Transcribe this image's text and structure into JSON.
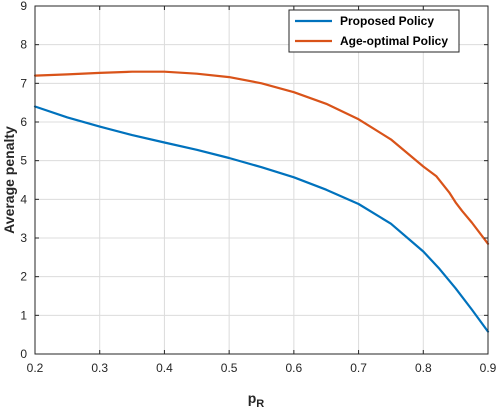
{
  "chart_data": {
    "type": "line",
    "title": "",
    "xlabel": "p",
    "xlabel_subscript": "R",
    "ylabel": "Average penalty",
    "xlim": [
      0.2,
      0.9
    ],
    "ylim": [
      0,
      9
    ],
    "xticks": [
      "0.2",
      "0.3",
      "0.4",
      "0.5",
      "0.6",
      "0.7",
      "0.8",
      "0.9"
    ],
    "yticks": [
      "0",
      "1",
      "2",
      "3",
      "4",
      "5",
      "6",
      "7",
      "8",
      "9"
    ],
    "grid": true,
    "legend_position": "top-right",
    "series": [
      {
        "name": "Proposed Policy",
        "color": "#0072BD",
        "x": [
          0.2,
          0.25,
          0.3,
          0.35,
          0.4,
          0.45,
          0.5,
          0.55,
          0.6,
          0.65,
          0.7,
          0.75,
          0.8,
          0.825,
          0.85,
          0.875,
          0.9
        ],
        "y": [
          6.4,
          6.12,
          5.88,
          5.66,
          5.47,
          5.28,
          5.07,
          4.83,
          4.57,
          4.25,
          3.88,
          3.37,
          2.65,
          2.2,
          1.7,
          1.15,
          0.58
        ]
      },
      {
        "name": "Age-optimal Policy",
        "color": "#D95319",
        "x": [
          0.2,
          0.25,
          0.3,
          0.35,
          0.4,
          0.45,
          0.5,
          0.55,
          0.6,
          0.65,
          0.7,
          0.75,
          0.8,
          0.82,
          0.84,
          0.85,
          0.86,
          0.875,
          0.9
        ],
        "y": [
          7.2,
          7.23,
          7.27,
          7.3,
          7.3,
          7.25,
          7.16,
          7.0,
          6.77,
          6.47,
          6.07,
          5.55,
          4.85,
          4.6,
          4.18,
          3.92,
          3.7,
          3.4,
          2.85
        ]
      }
    ]
  }
}
